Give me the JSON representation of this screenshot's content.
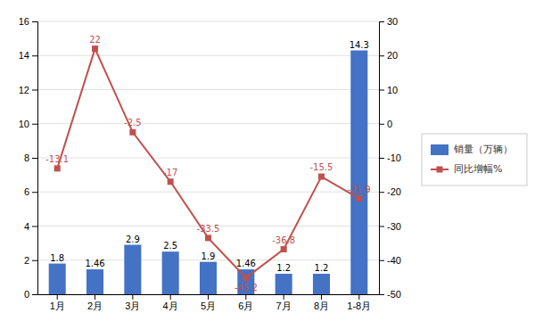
{
  "chart_data": {
    "type": "bar",
    "categories": [
      "1月",
      "2月",
      "3月",
      "4月",
      "5月",
      "6月",
      "7月",
      "8月",
      "1-8月"
    ],
    "series": [
      {
        "name": "销量（万辆）",
        "type": "bar",
        "color": "#4472C4",
        "values": [
          1.8,
          1.46,
          2.9,
          2.5,
          1.9,
          1.46,
          1.2,
          1.2,
          14.3
        ]
      },
      {
        "name": "同比增幅%",
        "type": "line",
        "axis": "y2",
        "color": "#C0504D",
        "marker": "square",
        "values": [
          -13.1,
          22,
          -2.5,
          -17,
          -33.5,
          -45.2,
          -36.8,
          -15.5,
          -21.9
        ]
      }
    ],
    "ylim": [
      0,
      16
    ],
    "yticks": [
      0,
      2,
      4,
      6,
      8,
      10,
      12,
      14,
      16
    ],
    "y2lim": [
      -50,
      30
    ],
    "y2ticks": [
      -50,
      -40,
      -30,
      -20,
      -10,
      0,
      10,
      20,
      30
    ],
    "grid": true,
    "data_labels": true
  }
}
